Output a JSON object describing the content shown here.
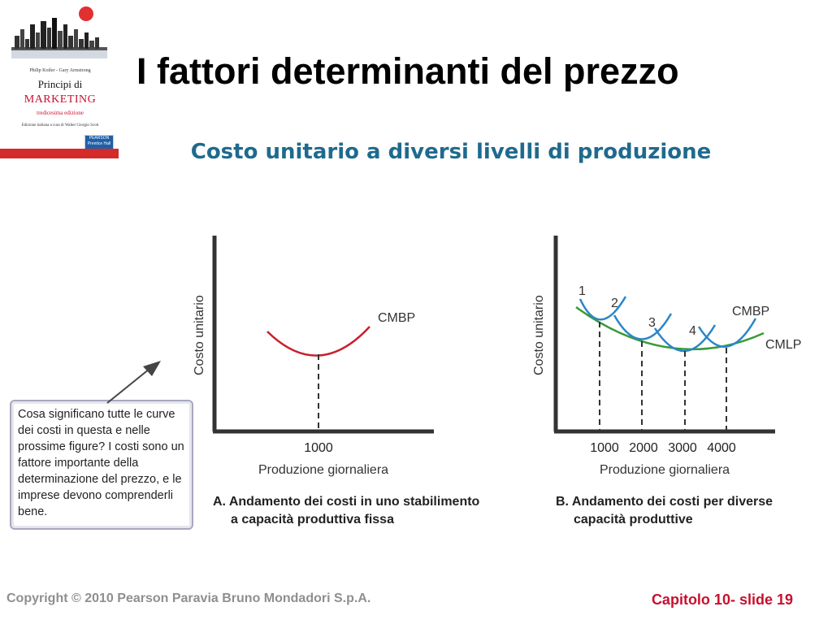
{
  "slide": {
    "title": "I fattori determinanti del prezzo",
    "subtitle": "Costo unitario a diversi livelli di produzione"
  },
  "book_cover": {
    "authors": "Philip Kotler - Gary Armstrong",
    "title_line1": "Principi di",
    "title_line2": "MARKETING",
    "edition": "tredicesima edizione",
    "note": "Edizione italiana a cura di Walter Giorgio Scott",
    "publisher": "PEARSON",
    "imprint": "Prentice Hall",
    "accent_color": "#c8102e"
  },
  "note_box": {
    "text": "Cosa significano tutte le curve dei costi in questa e nelle prossime figure? I costi sono un fattore importante della determinazione del prezzo, e le imprese devono comprenderli bene."
  },
  "chart_data": [
    {
      "type": "line",
      "caption_line1": "A. Andamento dei costi in uno stabilimento",
      "caption_line2": "a capacità produttiva fissa",
      "xlabel": "Produzione giornaliera",
      "ylabel": "Costo unitario",
      "x_ticks": [
        "1000"
      ],
      "series": [
        {
          "name": "CMBP",
          "color": "#c8202e",
          "minimum_at": "1000"
        }
      ]
    },
    {
      "type": "line",
      "caption_line1": "B. Andamento dei costi per diverse",
      "caption_line2": "capacità produttive",
      "xlabel": "Produzione giornaliera",
      "ylabel": "Costo unitario",
      "x_ticks": [
        "1000",
        "2000",
        "3000",
        "4000"
      ],
      "curve_numbers": [
        "1",
        "2",
        "3",
        "4"
      ],
      "series": [
        {
          "name": "CMBP",
          "color": "#2a86c8"
        },
        {
          "name": "CMLP",
          "color": "#3a9a3a"
        }
      ]
    }
  ],
  "footer": {
    "copyright": "Copyright © 2010 Pearson Paravia Bruno Mondadori S.p.A.",
    "slide_ref": "Capitolo 10- slide 19"
  }
}
